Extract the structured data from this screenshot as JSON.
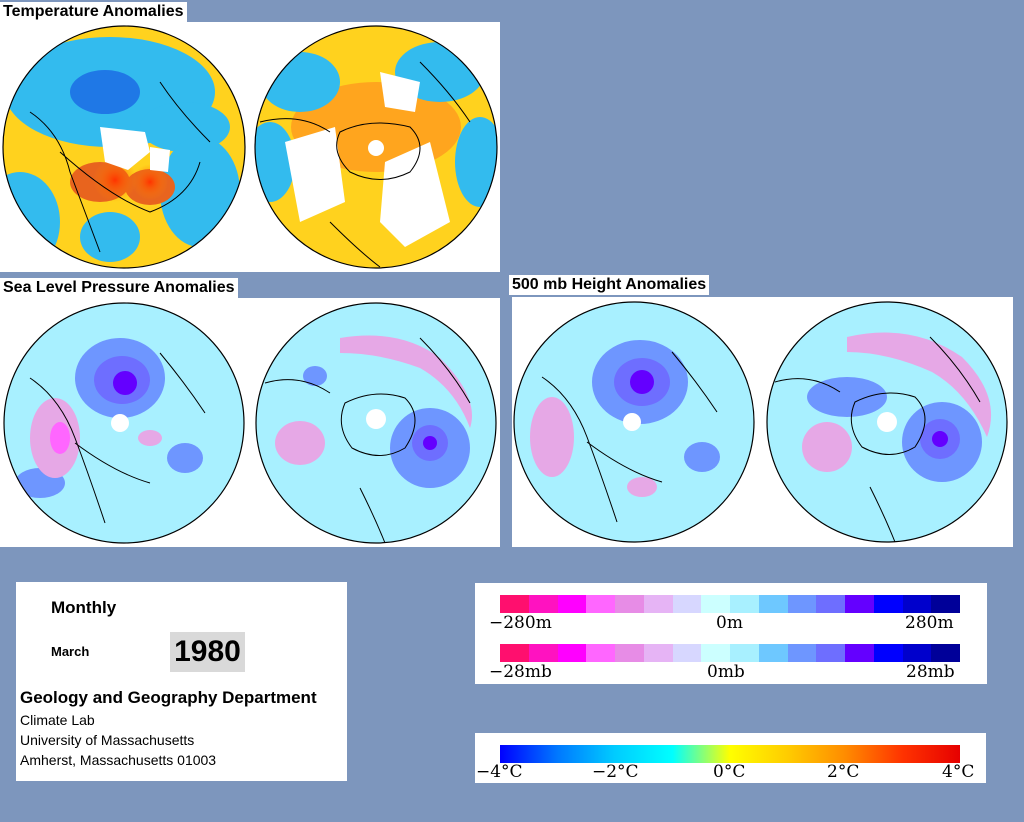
{
  "sections": {
    "temperature_title": "Temperature Anomalies",
    "slp_title": "Sea Level Pressure Anomalies",
    "height_title": "500 mb Height Anomalies"
  },
  "info": {
    "period": "Monthly",
    "month": "March",
    "year": "1980",
    "department": "Geology and Geography Department",
    "lines": [
      "Climate Lab",
      "University of Massachusetts",
      "Amherst, Massachusetts 01003"
    ]
  },
  "legends": {
    "height": {
      "labels": [
        "−280m",
        "0m",
        "280m"
      ],
      "colors": [
        "#ff0f6e",
        "#ff12c0",
        "#ff00ff",
        "#ff66ff",
        "#e78ce6",
        "#e6b4f5",
        "#d7d7ff",
        "#ccffff",
        "#a8f0ff",
        "#6ec8ff",
        "#6e96ff",
        "#6e6eff",
        "#6400ff",
        "#0000ff",
        "#0000cc",
        "#000099"
      ]
    },
    "pressure": {
      "labels": [
        "−28mb",
        "0mb",
        "28mb"
      ],
      "colors": [
        "#ff0f6e",
        "#ff12c0",
        "#ff00ff",
        "#ff66ff",
        "#e78ce6",
        "#e6b4f5",
        "#d7d7ff",
        "#ccffff",
        "#a8f0ff",
        "#6ec8ff",
        "#6e96ff",
        "#6e6eff",
        "#6400ff",
        "#0000ff",
        "#0000cc",
        "#000099"
      ]
    },
    "temperature": {
      "labels": [
        "−4°C",
        "−2°C",
        "0°C",
        "2°C",
        "4°C"
      ],
      "stops": [
        "#0000ff",
        "#0078ff",
        "#00ccff",
        "#00ffff",
        "#ffff00",
        "#ffcc00",
        "#ff8c00",
        "#ff3300",
        "#e60000"
      ]
    }
  },
  "colors": {
    "background": "#7d96bd",
    "temp_base": "#ffd21e",
    "temp_cold": "#33bbee",
    "temp_warm": "#e8641e",
    "no_data": "#ffffff",
    "anomaly_base": "#a8f0ff",
    "neg_anomaly": "#e6a8e6",
    "pos_anomaly": "#6e96ff"
  }
}
